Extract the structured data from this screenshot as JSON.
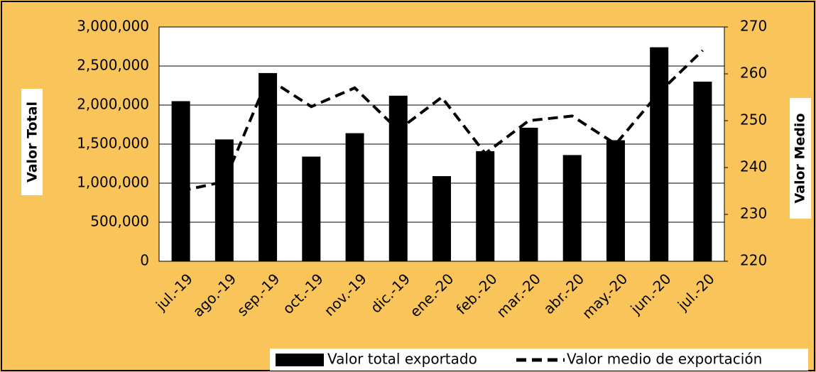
{
  "chart_data": {
    "type": "bar_line",
    "categories": [
      "jul.-19",
      "ago.-19",
      "sep.-19",
      "oct.-19",
      "nov.-19",
      "dic.-19",
      "ene.-20",
      "feb.-20",
      "mar.-20",
      "abr.-20",
      "may.-20",
      "jun.-20",
      "jul.-20"
    ],
    "series": [
      {
        "name": "Valor total exportado",
        "color": "#000000",
        "type": "bar",
        "values": [
          2050000,
          1560000,
          2410000,
          1340000,
          1640000,
          2120000,
          1090000,
          1410000,
          1710000,
          1360000,
          1550000,
          2740000,
          2300000
        ]
      },
      {
        "name": "Valor medio de exportación",
        "color": "#000000",
        "type": "line",
        "axis": "y2",
        "dashed": true,
        "values": [
          235,
          237,
          259,
          253,
          257,
          248,
          255,
          243,
          250,
          251,
          245,
          256,
          265
        ]
      }
    ],
    "ylabel": "Valor Total",
    "y2label": "Valor Medio",
    "ylim": [
      0,
      3000000
    ],
    "yticks": [
      0,
      {
        "value": 500000,
        "label": "500,000"
      },
      {
        "value": 1000000,
        "label": "1,000,000"
      },
      {
        "value": 1500000,
        "label": "1,500,000"
      },
      {
        "value": 2000000,
        "label": "2,000,000"
      },
      {
        "value": 2500000,
        "label": "2,500,000"
      },
      {
        "value": 3000000,
        "label": "3,000,000"
      }
    ],
    "y2lim": [
      220,
      270
    ],
    "y2ticks": [
      220,
      230,
      240,
      250,
      260,
      270
    ],
    "grid": true,
    "legend": "bottom-right"
  }
}
